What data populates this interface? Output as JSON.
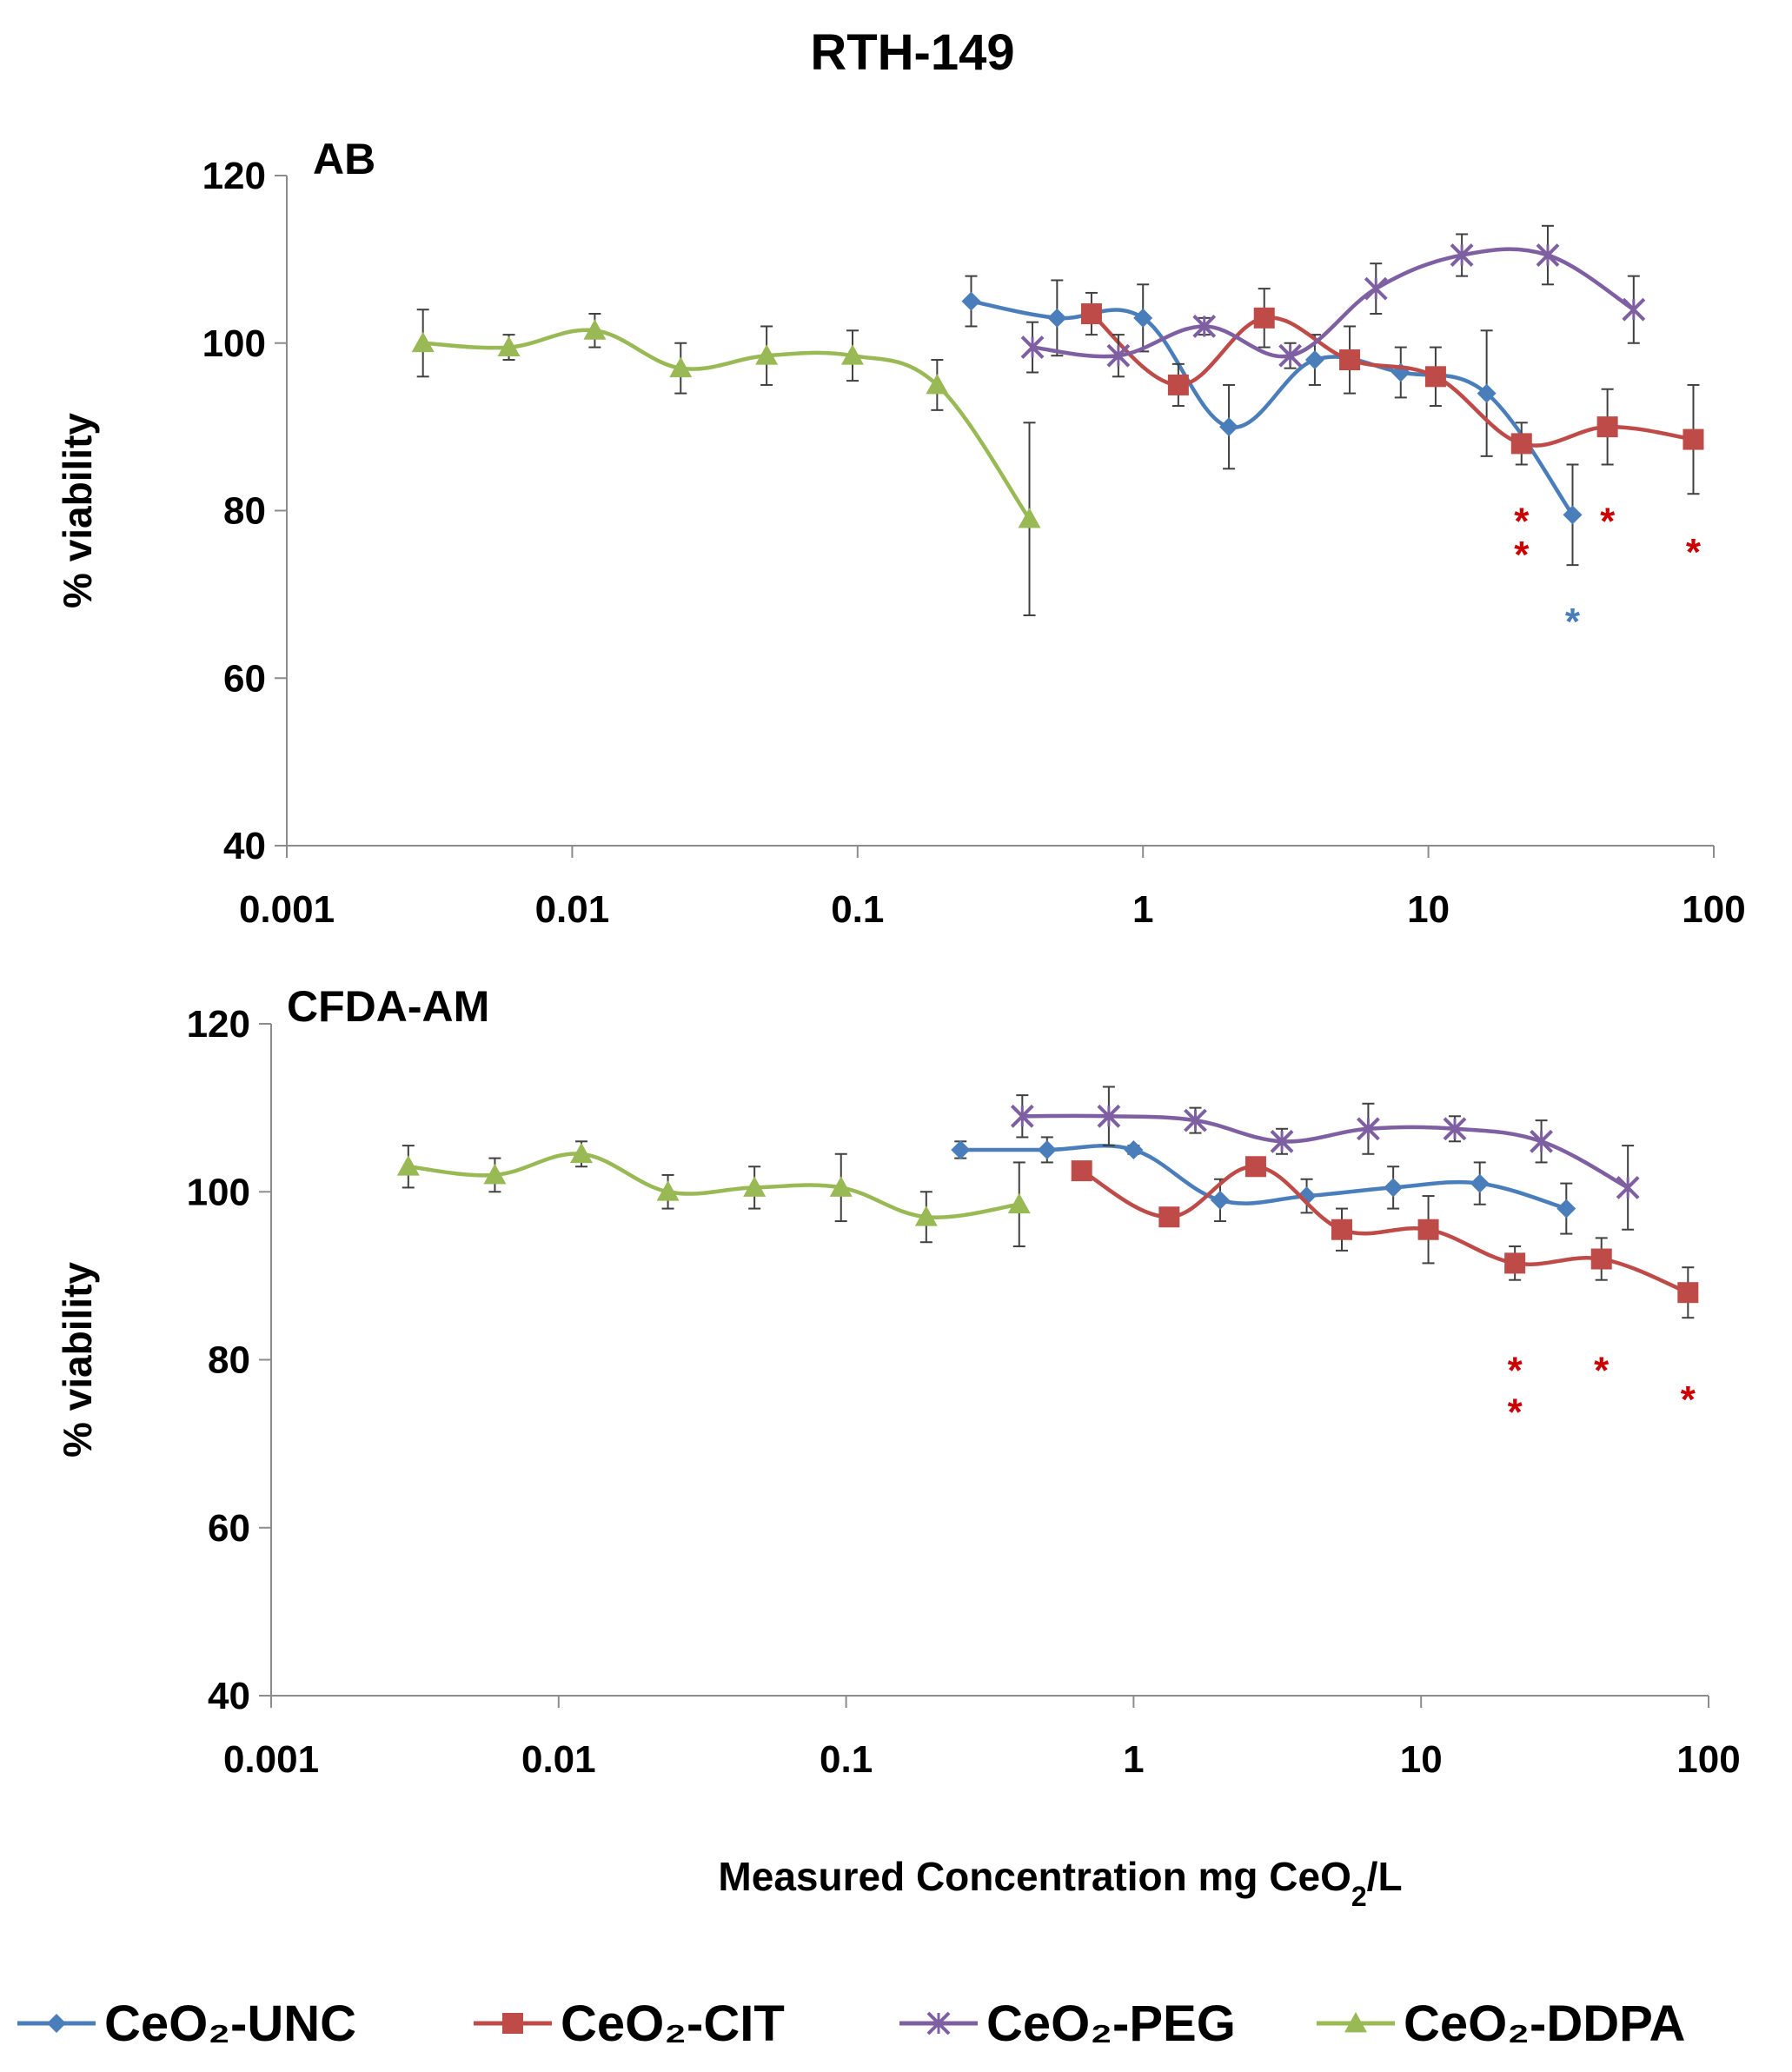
{
  "chart_data": {
    "title": "RTH-149",
    "type": "line",
    "xscale": "log",
    "xlabel_main": "Measured Concentration mg CeO",
    "xlabel_sub": "2",
    "xlabel_tail": "/L",
    "x_ticks": [
      0.001,
      0.01,
      0.1,
      1,
      10,
      100
    ],
    "x_tick_labels": [
      "0.001",
      "0.01",
      "0.1",
      "1",
      "10",
      "100"
    ],
    "y_ticks": [
      40,
      60,
      80,
      100,
      120
    ],
    "y_tick_labels": [
      "40",
      "60",
      "80",
      "100",
      "120"
    ],
    "legend": [
      {
        "name": "CeO₂-UNC",
        "color": "#4a7ebb",
        "marker": "diamond"
      },
      {
        "name": "CeO₂-CIT",
        "color": "#be4b48",
        "marker": "square"
      },
      {
        "name": "CeO₂-PEG",
        "color": "#7e5fa1",
        "marker": "x"
      },
      {
        "name": "CeO₂-DDPA",
        "color": "#98b954",
        "marker": "triangle"
      }
    ],
    "panels": [
      {
        "title": "AB",
        "ylabel": "% viability",
        "xlim": [
          0.001,
          100
        ],
        "ylim": [
          40,
          120
        ],
        "series": [
          {
            "name": "CeO₂-UNC",
            "color": "#4a7ebb",
            "marker": "diamond",
            "x": [
              0.25,
              0.5,
              1.0,
              2.0,
              4.0,
              8.0,
              16.0,
              32.0
            ],
            "y": [
              105,
              103,
              103,
              90,
              98,
              96.5,
              94,
              79.5
            ],
            "err": [
              3,
              4.5,
              4,
              5,
              3,
              3,
              7.5,
              6
            ]
          },
          {
            "name": "CeO₂-CIT",
            "color": "#be4b48",
            "marker": "square",
            "x": [
              0.66,
              1.33,
              2.66,
              5.3,
              10.6,
              21.2,
              42.4,
              84.8
            ],
            "y": [
              103.5,
              95,
              103,
              98,
              96,
              88,
              90,
              88.5
            ],
            "err": [
              2.5,
              2.5,
              3.5,
              4,
              3.5,
              2.5,
              4.5,
              6.5
            ]
          },
          {
            "name": "CeO₂-PEG",
            "color": "#7e5fa1",
            "marker": "x",
            "x": [
              0.41,
              0.82,
              1.64,
              3.28,
              6.55,
              13.1,
              26.2,
              52.4
            ],
            "y": [
              99.5,
              98.5,
              102,
              98.5,
              106.5,
              110.5,
              110.5,
              104
            ],
            "err": [
              3,
              2.5,
              1,
              1.5,
              3,
              2.5,
              3.5,
              4
            ]
          },
          {
            "name": "CeO₂-DDPA",
            "color": "#98b954",
            "marker": "triangle",
            "x": [
              0.003,
              0.006,
              0.012,
              0.024,
              0.048,
              0.096,
              0.19,
              0.4
            ],
            "y": [
              100,
              99.5,
              101.5,
              97,
              98.5,
              98.5,
              95,
              79
            ],
            "err": [
              4,
              1.5,
              2,
              3,
              3.5,
              3,
              3,
              11.5
            ]
          }
        ],
        "annotations": [
          {
            "x": 21.2,
            "y": 79.5,
            "text": "*",
            "color": "#cc0000"
          },
          {
            "x": 21.2,
            "y": 75.5,
            "text": "*",
            "color": "#cc0000"
          },
          {
            "x": 42.4,
            "y": 79.5,
            "text": "*",
            "color": "#cc0000"
          },
          {
            "x": 84.8,
            "y": 75.8,
            "text": "*",
            "color": "#cc0000"
          },
          {
            "x": 32.0,
            "y": 67.5,
            "text": "*",
            "color": "#4a7ebb"
          }
        ]
      },
      {
        "title": "CFDA-AM",
        "ylabel": "% viability",
        "xlim": [
          0.001,
          100
        ],
        "ylim": [
          40,
          120
        ],
        "series": [
          {
            "name": "CeO₂-UNC",
            "color": "#4a7ebb",
            "marker": "diamond",
            "x": [
              0.25,
              0.5,
              1.0,
              2.0,
              4.0,
              8.0,
              16.0,
              32.0
            ],
            "y": [
              105,
              105,
              105,
              99,
              99.5,
              100.5,
              101,
              98
            ],
            "err": [
              1,
              1.5,
              0.5,
              2.5,
              2,
              2.5,
              2.5,
              3
            ]
          },
          {
            "name": "CeO₂-CIT",
            "color": "#be4b48",
            "marker": "square",
            "x": [
              0.66,
              1.33,
              2.66,
              5.3,
              10.6,
              21.2,
              42.4,
              84.8
            ],
            "y": [
              102.5,
              97,
              103,
              95.5,
              95.5,
              91.5,
              92,
              88
            ],
            "err": [
              1,
              0.5,
              0.5,
              2.5,
              4,
              2,
              2.5,
              3
            ]
          },
          {
            "name": "CeO₂-PEG",
            "color": "#7e5fa1",
            "marker": "x",
            "x": [
              0.41,
              0.82,
              1.64,
              3.28,
              6.55,
              13.1,
              26.2,
              52.4
            ],
            "y": [
              109,
              109,
              108.5,
              106,
              107.5,
              107.5,
              106,
              100.5
            ],
            "err": [
              2.5,
              3.5,
              1.5,
              1.5,
              3,
              1.5,
              2.5,
              5
            ]
          },
          {
            "name": "CeO₂-DDPA",
            "color": "#98b954",
            "marker": "triangle",
            "x": [
              0.003,
              0.006,
              0.012,
              0.024,
              0.048,
              0.096,
              0.19,
              0.4
            ],
            "y": [
              103,
              102,
              104.5,
              100,
              100.5,
              100.5,
              97,
              98.5
            ],
            "err": [
              2.5,
              2,
              1.5,
              2,
              2.5,
              4,
              3,
              5
            ]
          }
        ],
        "annotations": [
          {
            "x": 21.2,
            "y": 79.5,
            "text": "*",
            "color": "#cc0000"
          },
          {
            "x": 21.2,
            "y": 74.5,
            "text": "*",
            "color": "#cc0000"
          },
          {
            "x": 42.4,
            "y": 79.5,
            "text": "*",
            "color": "#cc0000"
          },
          {
            "x": 84.8,
            "y": 76.0,
            "text": "*",
            "color": "#cc0000"
          }
        ]
      }
    ]
  }
}
